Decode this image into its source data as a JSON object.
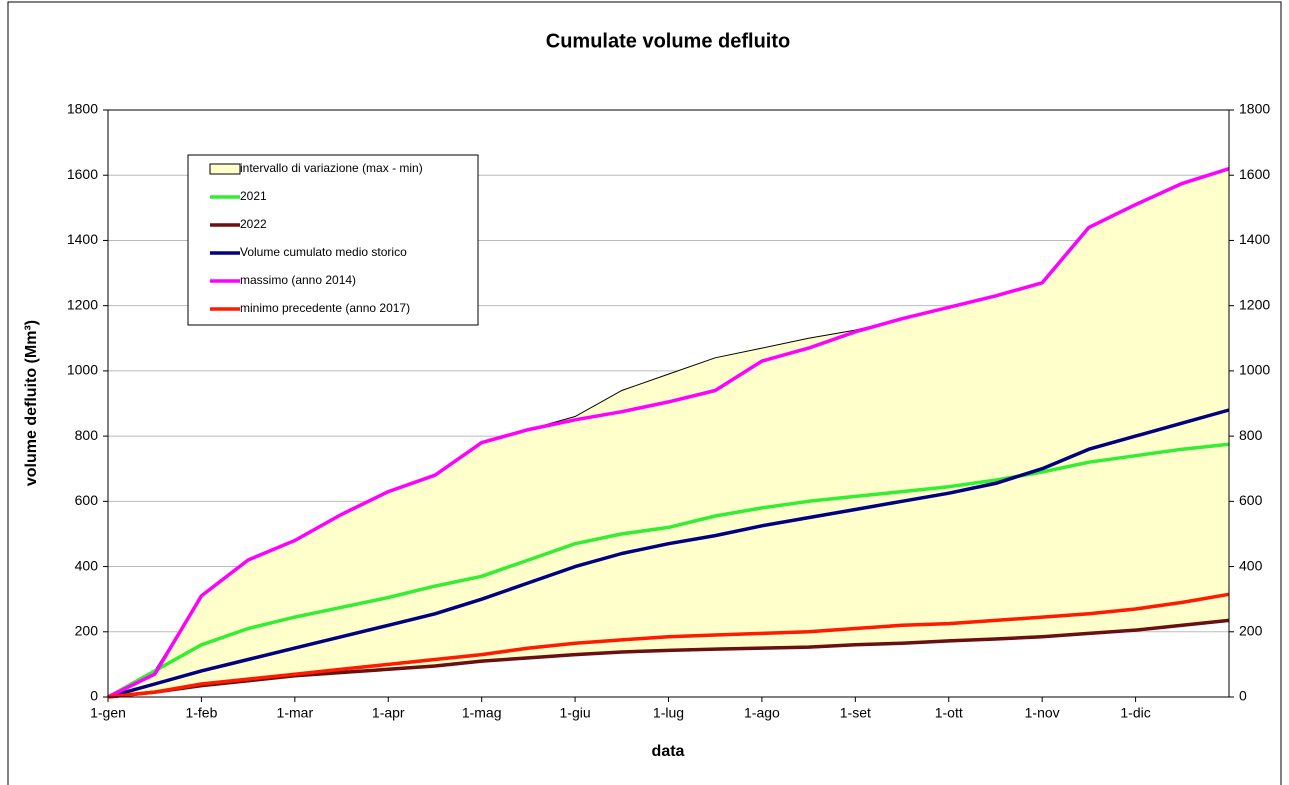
{
  "chart_data": {
    "type": "line",
    "title": "Cumulate volume defluito",
    "xlabel": "data",
    "ylabel": "volume defluito (Mm³)",
    "categories": [
      "1-gen",
      null,
      "1-feb",
      null,
      "1-mar",
      null,
      "1-apr",
      null,
      "1-mag",
      null,
      "1-giu",
      null,
      "1-lug",
      null,
      "1-ago",
      null,
      "1-set",
      null,
      "1-ott",
      null,
      "1-nov",
      null,
      "1-dic",
      null,
      null
    ],
    "ylim": [
      0,
      1800
    ],
    "yticks": [
      0,
      200,
      400,
      600,
      800,
      1000,
      1200,
      1400,
      1600,
      1800
    ],
    "y2lim": [
      0,
      1800
    ],
    "y2ticks": [
      0,
      200,
      400,
      600,
      800,
      1000,
      1200,
      1400,
      1600,
      1800
    ],
    "grid": true,
    "series": [
      {
        "name": "intervallo di variazione (max - min)",
        "kind": "band",
        "color": "#ffffcc",
        "values": [
          0,
          80,
          310,
          420,
          480,
          560,
          630,
          680,
          780,
          820,
          860,
          940,
          990,
          1040,
          1070,
          1100,
          1125,
          1160,
          1195,
          1230,
          1270,
          1440,
          1510,
          1575,
          1620
        ],
        "lower": [
          0,
          15,
          35,
          50,
          65,
          75,
          85,
          95,
          110,
          120,
          130,
          138,
          143,
          147,
          150,
          153,
          160,
          165,
          172,
          178,
          185,
          195,
          205,
          220,
          235
        ]
      },
      {
        "name": "2021",
        "color": "#33ee33",
        "values": [
          0,
          80,
          160,
          210,
          245,
          275,
          305,
          340,
          370,
          420,
          470,
          500,
          520,
          555,
          580,
          600,
          615,
          630,
          645,
          665,
          690,
          720,
          740,
          760,
          775
        ]
      },
      {
        "name": "2022",
        "color": "#6b1010",
        "values": [
          0,
          15,
          35,
          50,
          65,
          75,
          85,
          95,
          110,
          120,
          130,
          138,
          143,
          147,
          150,
          153,
          160,
          165,
          172,
          178,
          185,
          195,
          205,
          220,
          235
        ]
      },
      {
        "name": "Volume cumulato medio storico",
        "color": "#000080",
        "values": [
          0,
          40,
          80,
          115,
          150,
          185,
          220,
          255,
          300,
          350,
          400,
          440,
          470,
          495,
          525,
          550,
          575,
          600,
          625,
          655,
          700,
          760,
          800,
          840,
          880
        ]
      },
      {
        "name": "massimo (anno 2014)",
        "color": "#ff00ff",
        "values": [
          0,
          70,
          310,
          420,
          480,
          560,
          630,
          680,
          780,
          820,
          850,
          875,
          905,
          940,
          1030,
          1070,
          1120,
          1160,
          1195,
          1230,
          1270,
          1440,
          1510,
          1575,
          1620
        ]
      },
      {
        "name": "minimo precedente (anno 2017)",
        "color": "#ff1a00",
        "values": [
          0,
          15,
          40,
          55,
          70,
          85,
          100,
          115,
          130,
          150,
          165,
          175,
          185,
          190,
          195,
          200,
          210,
          220,
          225,
          235,
          245,
          255,
          270,
          290,
          315
        ]
      }
    ]
  }
}
